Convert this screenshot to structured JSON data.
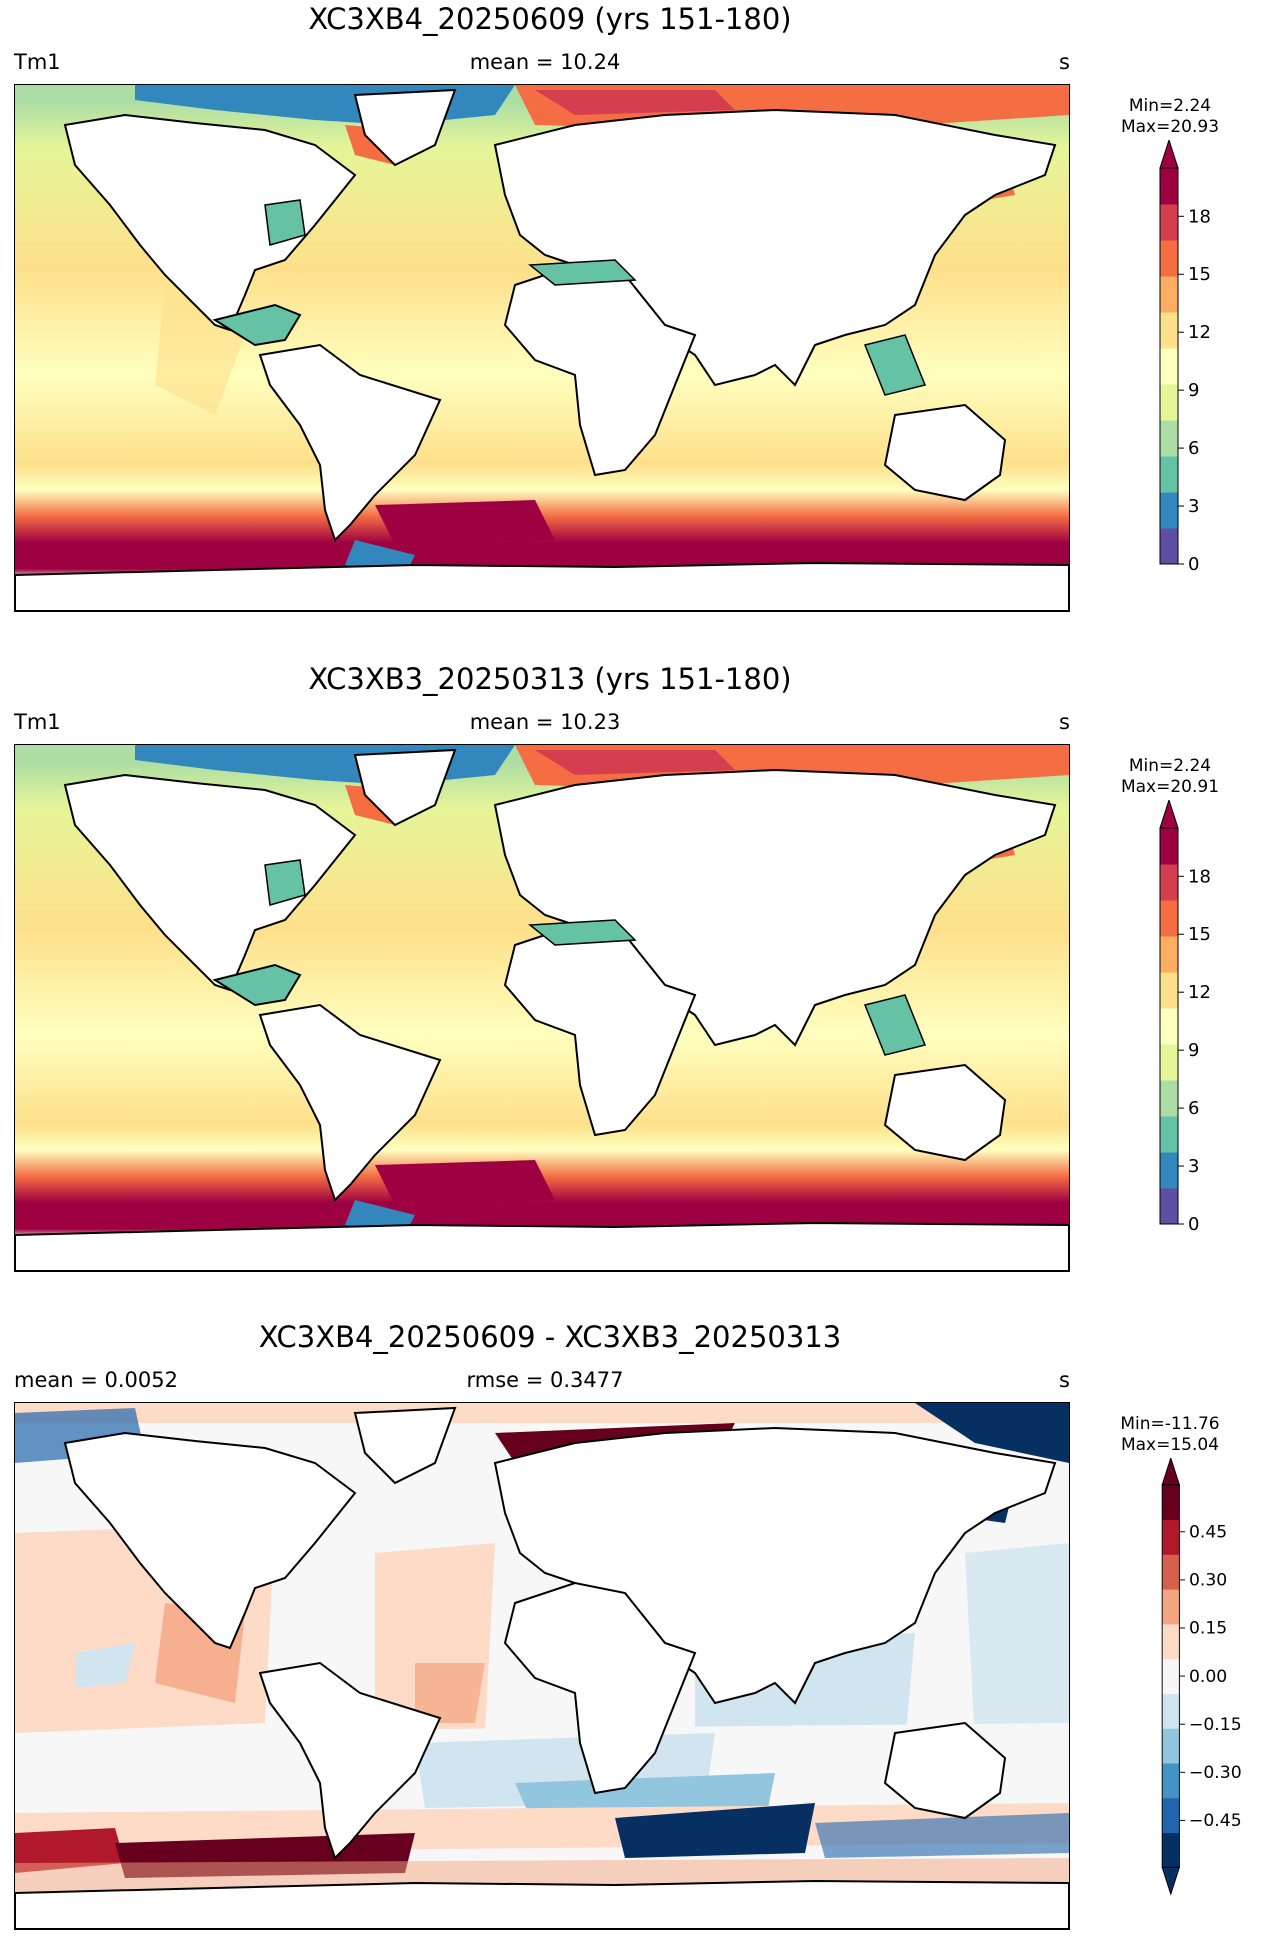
{
  "panels": [
    {
      "title": "XC3XB4_20250609 (yrs 151-180)",
      "left_label": "Tm1",
      "center_label": "mean = 10.24",
      "right_label": "s",
      "min_label": "Min=2.24",
      "max_label": "Max=20.93",
      "colormap": "Spectral_r",
      "colorbar_ticks": [
        "0",
        "3",
        "6",
        "9",
        "12",
        "15",
        "18"
      ]
    },
    {
      "title": "XC3XB3_20250313 (yrs 151-180)",
      "left_label": "Tm1",
      "center_label": "mean = 10.23",
      "right_label": "s",
      "min_label": "Min=2.24",
      "max_label": "Max=20.91",
      "colormap": "Spectral_r",
      "colorbar_ticks": [
        "0",
        "3",
        "6",
        "9",
        "12",
        "15",
        "18"
      ]
    },
    {
      "title": "XC3XB4_20250609 - XC3XB3_20250313",
      "left_label": "mean = 0.0052",
      "center_label": "rmse = 0.3477",
      "right_label": "s",
      "min_label": "Min=-11.76",
      "max_label": "Max=15.04",
      "colormap": "RdBu_r",
      "colorbar_ticks": [
        "−0.45",
        "−0.30",
        "−0.15",
        "0.00",
        "0.15",
        "0.30",
        "0.45"
      ]
    }
  ],
  "colors": {
    "spectral": [
      "#5e4fa2",
      "#3288bd",
      "#66c2a5",
      "#abdda4",
      "#e6f598",
      "#ffffbf",
      "#fee08b",
      "#fdae61",
      "#f46d43",
      "#d53e4f",
      "#9e0142"
    ],
    "rdbu": [
      "#053061",
      "#2166ac",
      "#4393c3",
      "#92c5de",
      "#d1e5f0",
      "#f7f7f7",
      "#fddbc7",
      "#f4a582",
      "#d6604d",
      "#b2182b",
      "#67001f"
    ]
  }
}
